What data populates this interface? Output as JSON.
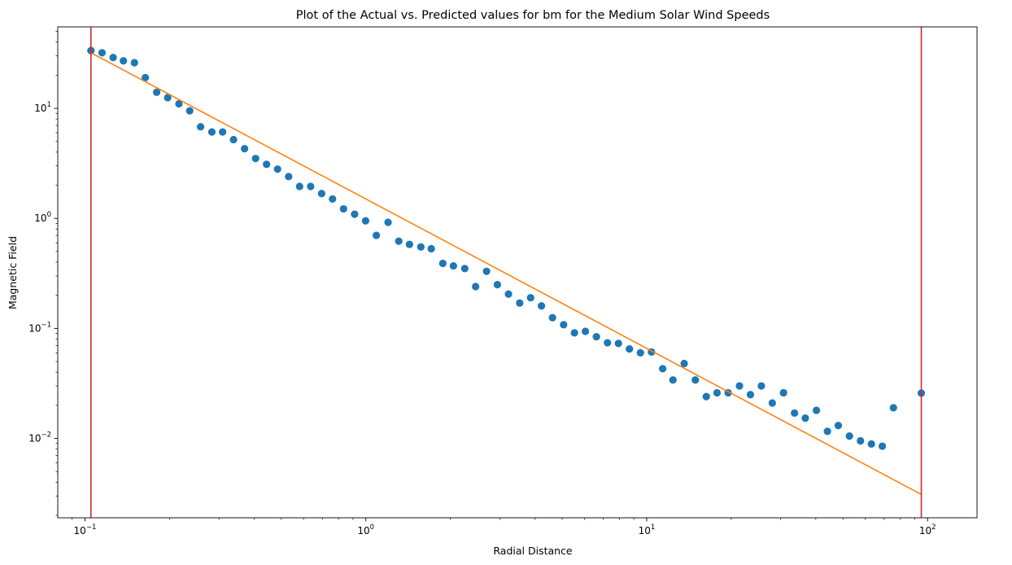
{
  "chart_data": {
    "type": "scatter",
    "title": "Plot of the Actual vs. Predicted values for bm for the Medium Solar Wind Speeds",
    "xlabel": "Radial Distance",
    "ylabel": "Magnetic Field",
    "xscale": "log",
    "yscale": "log",
    "xlim": [
      0.08,
      150
    ],
    "ylim": [
      0.0019,
      55
    ],
    "grid": false,
    "xticks": [
      {
        "value": 0.1,
        "mantissa": "10",
        "exp": "−1"
      },
      {
        "value": 1,
        "mantissa": "10",
        "exp": "0"
      },
      {
        "value": 10,
        "mantissa": "10",
        "exp": "1"
      },
      {
        "value": 100,
        "mantissa": "10",
        "exp": "2"
      }
    ],
    "yticks": [
      {
        "value": 0.01,
        "mantissa": "10",
        "exp": "−2"
      },
      {
        "value": 0.1,
        "mantissa": "10",
        "exp": "−1"
      },
      {
        "value": 1,
        "mantissa": "10",
        "exp": "0"
      },
      {
        "value": 10,
        "mantissa": "10",
        "exp": "1"
      }
    ],
    "series": [
      {
        "kind": "scatter",
        "color": "#1f77b4",
        "points": [
          [
            0.105,
            33.5
          ],
          [
            0.115,
            32.0
          ],
          [
            0.126,
            29.0
          ],
          [
            0.137,
            27.0
          ],
          [
            0.15,
            26.0
          ],
          [
            0.164,
            19.0
          ],
          [
            0.18,
            14.0
          ],
          [
            0.197,
            12.5
          ],
          [
            0.216,
            11.0
          ],
          [
            0.236,
            9.5
          ],
          [
            0.258,
            6.8
          ],
          [
            0.283,
            6.1
          ],
          [
            0.309,
            6.1
          ],
          [
            0.338,
            5.2
          ],
          [
            0.37,
            4.3
          ],
          [
            0.405,
            3.5
          ],
          [
            0.443,
            3.1
          ],
          [
            0.485,
            2.8
          ],
          [
            0.531,
            2.4
          ],
          [
            0.581,
            1.95
          ],
          [
            0.636,
            1.95
          ],
          [
            0.696,
            1.68
          ],
          [
            0.761,
            1.5
          ],
          [
            0.833,
            1.22
          ],
          [
            0.912,
            1.09
          ],
          [
            0.998,
            0.95
          ],
          [
            1.09,
            0.7
          ],
          [
            1.2,
            0.92
          ],
          [
            1.31,
            0.62
          ],
          [
            1.43,
            0.58
          ],
          [
            1.57,
            0.55
          ],
          [
            1.71,
            0.53
          ],
          [
            1.88,
            0.39
          ],
          [
            2.05,
            0.37
          ],
          [
            2.25,
            0.35
          ],
          [
            2.46,
            0.24
          ],
          [
            2.69,
            0.33
          ],
          [
            2.94,
            0.25
          ],
          [
            3.22,
            0.205
          ],
          [
            3.53,
            0.17
          ],
          [
            3.86,
            0.19
          ],
          [
            4.22,
            0.16
          ],
          [
            4.62,
            0.125
          ],
          [
            5.06,
            0.108
          ],
          [
            5.53,
            0.091
          ],
          [
            6.05,
            0.094
          ],
          [
            6.62,
            0.084
          ],
          [
            7.25,
            0.074
          ],
          [
            7.93,
            0.073
          ],
          [
            8.68,
            0.065
          ],
          [
            9.5,
            0.06
          ],
          [
            10.4,
            0.061
          ],
          [
            11.4,
            0.043
          ],
          [
            12.4,
            0.034
          ],
          [
            13.6,
            0.048
          ],
          [
            14.9,
            0.034
          ],
          [
            16.3,
            0.024
          ],
          [
            17.8,
            0.026
          ],
          [
            19.5,
            0.026
          ],
          [
            21.4,
            0.03
          ],
          [
            23.4,
            0.025
          ],
          [
            25.6,
            0.03
          ],
          [
            28.0,
            0.021
          ],
          [
            30.7,
            0.026
          ],
          [
            33.6,
            0.017
          ],
          [
            36.7,
            0.0153
          ],
          [
            40.2,
            0.018
          ],
          [
            44.0,
            0.0116
          ],
          [
            48.1,
            0.0131
          ],
          [
            52.7,
            0.0105
          ],
          [
            57.7,
            0.0095
          ],
          [
            63.1,
            0.0089
          ],
          [
            69.0,
            0.0085
          ],
          [
            75.6,
            0.019
          ],
          [
            95.0,
            0.0258
          ]
        ]
      },
      {
        "kind": "line",
        "color": "#ff7f0e",
        "points": [
          [
            0.105,
            32.0
          ],
          [
            95.0,
            0.0031
          ]
        ]
      }
    ],
    "vlines": [
      {
        "x": 0.105,
        "color": "#d62728"
      },
      {
        "x": 95.0,
        "color": "#d62728"
      }
    ]
  }
}
